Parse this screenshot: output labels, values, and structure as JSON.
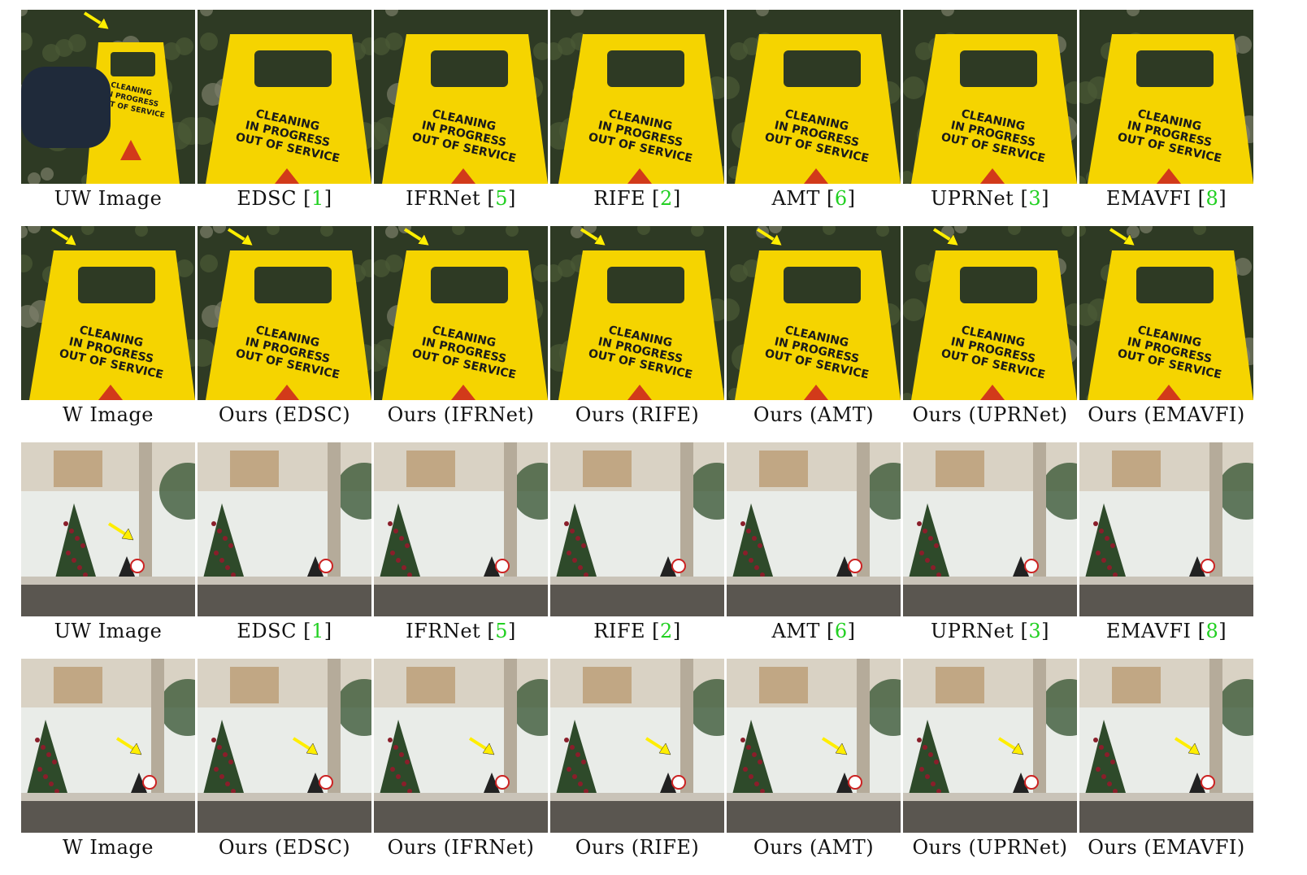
{
  "rows": [
    {
      "scene": "sign",
      "cells": [
        {
          "label": "UW Image",
          "cite": "",
          "arrow": true,
          "wide": true
        },
        {
          "label": "EDSC ",
          "cite": "1",
          "arrow": false,
          "wide": false
        },
        {
          "label": "IFRNet ",
          "cite": "5",
          "arrow": false,
          "wide": false
        },
        {
          "label": "RIFE ",
          "cite": "2",
          "arrow": false,
          "wide": false
        },
        {
          "label": "AMT ",
          "cite": "6",
          "arrow": false,
          "wide": false
        },
        {
          "label": "UPRNet ",
          "cite": "3",
          "arrow": false,
          "wide": false
        },
        {
          "label": "EMAVFI ",
          "cite": "8",
          "arrow": false,
          "wide": false
        }
      ]
    },
    {
      "scene": "sign",
      "cells": [
        {
          "label": "W Image",
          "cite": "",
          "arrow": true,
          "wide": false
        },
        {
          "label": "Ours (EDSC)",
          "cite": "",
          "arrow": true,
          "wide": false
        },
        {
          "label": "Ours (IFRNet)",
          "cite": "",
          "arrow": true,
          "wide": false
        },
        {
          "label": "Ours (RIFE)",
          "cite": "",
          "arrow": true,
          "wide": false
        },
        {
          "label": "Ours (AMT)",
          "cite": "",
          "arrow": true,
          "wide": false
        },
        {
          "label": "Ours (UPRNet)",
          "cite": "",
          "arrow": true,
          "wide": false
        },
        {
          "label": "Ours (EMAVFI)",
          "cite": "",
          "arrow": true,
          "wide": false
        }
      ]
    },
    {
      "scene": "tree",
      "cells": [
        {
          "label": "UW Image",
          "cite": "",
          "arrow": true,
          "wide": true
        },
        {
          "label": "EDSC ",
          "cite": "1",
          "arrow": false,
          "wide": false
        },
        {
          "label": "IFRNet ",
          "cite": "5",
          "arrow": false,
          "wide": false
        },
        {
          "label": "RIFE ",
          "cite": "2",
          "arrow": false,
          "wide": false
        },
        {
          "label": "AMT ",
          "cite": "6",
          "arrow": false,
          "wide": false
        },
        {
          "label": "UPRNet ",
          "cite": "3",
          "arrow": false,
          "wide": false
        },
        {
          "label": "EMAVFI ",
          "cite": "8",
          "arrow": false,
          "wide": false
        }
      ]
    },
    {
      "scene": "tree",
      "cells": [
        {
          "label": "W Image",
          "cite": "",
          "arrow": true,
          "wide": false
        },
        {
          "label": "Ours (EDSC)",
          "cite": "",
          "arrow": true,
          "wide": false
        },
        {
          "label": "Ours (IFRNet)",
          "cite": "",
          "arrow": true,
          "wide": false
        },
        {
          "label": "Ours (RIFE)",
          "cite": "",
          "arrow": true,
          "wide": false
        },
        {
          "label": "Ours (AMT)",
          "cite": "",
          "arrow": true,
          "wide": false
        },
        {
          "label": "Ours (UPRNet)",
          "cite": "",
          "arrow": true,
          "wide": false
        },
        {
          "label": "Ours (EMAVFI)",
          "cite": "",
          "arrow": true,
          "wide": false
        }
      ]
    }
  ],
  "sign_text": [
    "CLEANING",
    "IN PROGRESS",
    "OUT OF SERVICE"
  ],
  "colors": {
    "cite": "#22d022",
    "arrow": "#ffee00",
    "sign": "#f5d400"
  }
}
